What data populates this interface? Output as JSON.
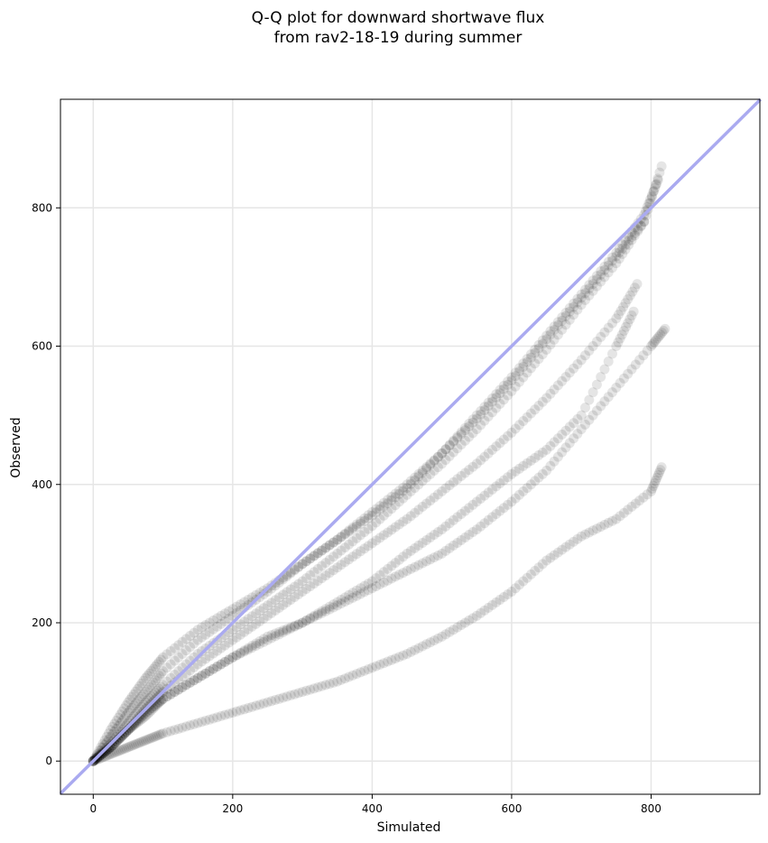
{
  "chart_data": {
    "type": "scatter",
    "title_lines": [
      "Q-Q plot for downward shortwave flux",
      "from rav2-18-19 during summer"
    ],
    "xlabel": "Simulated",
    "ylabel": "Observed",
    "xlim": [
      -47,
      956
    ],
    "ylim": [
      -48,
      957
    ],
    "xticks": [
      0,
      200,
      400,
      600,
      800
    ],
    "yticks": [
      0,
      200,
      400,
      600,
      800
    ],
    "grid": true,
    "reference_line": {
      "from": [
        -47,
        -47
      ],
      "to": [
        957,
        957
      ],
      "color": "#aaaaf0"
    },
    "point_color": "#000000",
    "point_alpha": 0.1,
    "series": [
      {
        "x": [
          0,
          25,
          50,
          75,
          100,
          150,
          200,
          250,
          300,
          350,
          400,
          450,
          500,
          550,
          600,
          650,
          700,
          750,
          790,
          810
        ],
        "y": [
          0,
          35,
          70,
          100,
          130,
          175,
          210,
          245,
          285,
          320,
          360,
          400,
          445,
          500,
          555,
          615,
          675,
          735,
          790,
          840
        ]
      },
      {
        "x": [
          0,
          25,
          50,
          75,
          100,
          150,
          200,
          250,
          300,
          350,
          400,
          450,
          500,
          550,
          600,
          650,
          700,
          750,
          790,
          815
        ],
        "y": [
          0,
          25,
          55,
          85,
          110,
          155,
          190,
          225,
          260,
          300,
          340,
          385,
          430,
          480,
          535,
          595,
          660,
          720,
          780,
          860
        ]
      },
      {
        "x": [
          0,
          25,
          50,
          75,
          100,
          150,
          200,
          250,
          300,
          350,
          400,
          450,
          500,
          550,
          600,
          650,
          700,
          750,
          790
        ],
        "y": [
          0,
          45,
          85,
          120,
          150,
          190,
          220,
          250,
          285,
          320,
          355,
          395,
          445,
          495,
          550,
          610,
          670,
          730,
          780
        ]
      },
      {
        "x": [
          0,
          25,
          50,
          75,
          100,
          150,
          200,
          250,
          300,
          350,
          400,
          450,
          500,
          550,
          600,
          650,
          700,
          750,
          780
        ],
        "y": [
          0,
          20,
          45,
          75,
          100,
          140,
          175,
          210,
          245,
          280,
          315,
          350,
          390,
          430,
          475,
          525,
          580,
          640,
          690
        ]
      },
      {
        "x": [
          0,
          25,
          50,
          75,
          100,
          150,
          200,
          250,
          300,
          350,
          400,
          450,
          500,
          550,
          600,
          650,
          700,
          750,
          775
        ],
        "y": [
          0,
          20,
          45,
          65,
          90,
          120,
          150,
          180,
          200,
          230,
          260,
          300,
          335,
          375,
          415,
          450,
          500,
          600,
          650
        ]
      },
      {
        "x": [
          0,
          25,
          50,
          75,
          100,
          150,
          200,
          250,
          300,
          350,
          400,
          450,
          500,
          550,
          600,
          650,
          700,
          750,
          800,
          820
        ],
        "y": [
          0,
          20,
          45,
          70,
          90,
          120,
          150,
          175,
          200,
          225,
          250,
          275,
          300,
          335,
          375,
          420,
          480,
          540,
          600,
          625
        ]
      },
      {
        "x": [
          0,
          25,
          50,
          75,
          100,
          150,
          200,
          250,
          300,
          350,
          400,
          450,
          500,
          550,
          600,
          650,
          700,
          750,
          800,
          815
        ],
        "y": [
          0,
          10,
          20,
          30,
          40,
          55,
          70,
          85,
          100,
          115,
          135,
          155,
          180,
          210,
          245,
          290,
          325,
          350,
          390,
          425
        ]
      }
    ]
  }
}
